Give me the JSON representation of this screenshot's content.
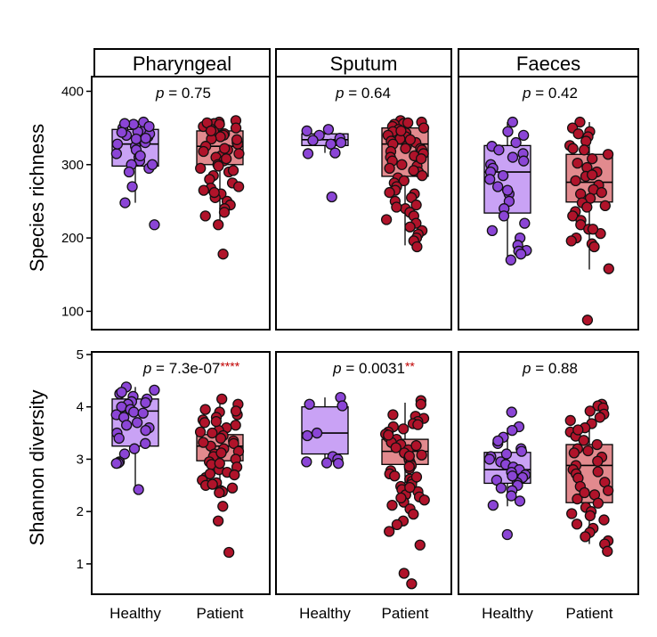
{
  "colors": {
    "healthy_fill": "#c9a2f5",
    "healthy_point": "#8b45d6",
    "patient_fill": "#e28a8e",
    "patient_point": "#b0132a",
    "significance": "#c00000"
  },
  "chart_data": {
    "type": "boxplot",
    "panels": [
      "Pharyngeal",
      "Sputum",
      "Faeces"
    ],
    "groups": [
      "Healthy",
      "Patient"
    ],
    "rows": [
      {
        "metric": "Species richness",
        "ylabel": "Species richness",
        "ylim": [
          75,
          420
        ],
        "yticks": [
          100,
          200,
          300,
          400
        ],
        "pvalues": [
          {
            "text": "= 0.75",
            "sig": ""
          },
          {
            "text": "= 0.64",
            "sig": ""
          },
          {
            "text": "= 0.42",
            "sig": ""
          }
        ],
        "boxes": [
          [
            {
              "q1": 298,
              "median": 328,
              "q3": 348,
              "wlo": 248,
              "whi": 358
            },
            {
              "q1": 300,
              "median": 325,
              "q3": 346,
              "wlo": 215,
              "whi": 360
            }
          ],
          [
            {
              "q1": 326,
              "median": 334,
              "q3": 342,
              "wlo": 316,
              "whi": 350
            },
            {
              "q1": 284,
              "median": 328,
              "q3": 350,
              "wlo": 190,
              "whi": 360
            }
          ],
          [
            {
              "q1": 234,
              "median": 290,
              "q3": 326,
              "wlo": 170,
              "whi": 358
            },
            {
              "q1": 249,
              "median": 276,
              "q3": 314,
              "wlo": 157,
              "whi": 358
            }
          ]
        ]
      },
      {
        "metric": "Shannon diversity",
        "ylabel": "Shannon diversity",
        "ylim": [
          0.42,
          5.05
        ],
        "yticks": [
          1,
          2,
          3,
          4,
          5
        ],
        "pvalues": [
          {
            "text": "= 7.3e-07",
            "sig": "****"
          },
          {
            "text": "= 0.0031",
            "sig": "**"
          },
          {
            "text": "= 0.88",
            "sig": ""
          }
        ],
        "boxes": [
          [
            {
              "q1": 3.25,
              "median": 3.92,
              "q3": 4.15,
              "wlo": 2.42,
              "whi": 4.38
            },
            {
              "q1": 2.97,
              "median": 3.25,
              "q3": 3.47,
              "wlo": 2.38,
              "whi": 4.12
            }
          ],
          [
            {
              "q1": 3.1,
              "median": 3.5,
              "q3": 4.0,
              "wlo": 2.92,
              "whi": 4.18
            },
            {
              "q1": 2.9,
              "median": 3.15,
              "q3": 3.38,
              "wlo": 2.2,
              "whi": 4.08
            }
          ],
          [
            {
              "q1": 2.54,
              "median": 2.8,
              "q3": 3.13,
              "wlo": 2.1,
              "whi": 3.6
            },
            {
              "q1": 2.17,
              "median": 2.88,
              "q3": 3.28,
              "wlo": 1.38,
              "whi": 4.02
            }
          ]
        ]
      }
    ],
    "points": {
      "richness": [
        [
          [
            350,
            348,
            345,
            355,
            340,
            338,
            330,
            325,
            320,
            335,
            315,
            310,
            305,
            300,
            295,
            290,
            270,
            248,
            218,
            358,
            342,
            352,
            328,
            312,
            300,
            356,
            336,
            344
          ],
          [
            360,
            358,
            356,
            355,
            352,
            350,
            348,
            345,
            342,
            340,
            338,
            335,
            330,
            328,
            325,
            320,
            318,
            315,
            312,
            310,
            305,
            300,
            298,
            295,
            290,
            285,
            280,
            275,
            270,
            268,
            265,
            260,
            255,
            250,
            245,
            240,
            235,
            230,
            218,
            178,
            357,
            346,
            334,
            322,
            308,
            292,
            262
          ]
        ],
        [
          [
            348,
            346,
            340,
            336,
            333,
            330,
            328,
            316,
            315,
            256
          ],
          [
            360,
            358,
            356,
            355,
            352,
            350,
            348,
            345,
            343,
            340,
            338,
            335,
            332,
            330,
            328,
            325,
            322,
            320,
            318,
            315,
            312,
            310,
            305,
            300,
            298,
            295,
            290,
            285,
            282,
            278,
            275,
            270,
            265,
            260,
            255,
            250,
            245,
            240,
            235,
            230,
            225,
            220,
            215,
            210,
            205,
            200,
            196,
            188,
            357,
            346,
            334,
            322,
            308,
            292,
            262,
            242
          ]
        ],
        [
          [
            358,
            345,
            340,
            330,
            325,
            320,
            315,
            310,
            305,
            300,
            295,
            290,
            280,
            270,
            260,
            250,
            240,
            230,
            220,
            210,
            200,
            190,
            183,
            182,
            178,
            170,
            285,
            265
          ],
          [
            358,
            350,
            345,
            342,
            338,
            332,
            326,
            320,
            314,
            308,
            302,
            296,
            290,
            284,
            278,
            272,
            266,
            260,
            254,
            248,
            242,
            236,
            230,
            224,
            218,
            212,
            206,
            200,
            196,
            192,
            188,
            158,
            88,
            322,
            286,
            262,
            244,
            212
          ]
        ]
      ],
      "shannon": [
        [
          [
            4.38,
            4.32,
            4.25,
            4.2,
            4.15,
            4.1,
            4.05,
            4.0,
            3.95,
            3.9,
            3.85,
            3.8,
            3.7,
            3.6,
            3.55,
            3.5,
            3.4,
            3.3,
            3.2,
            3.1,
            2.95,
            2.93,
            2.92,
            2.42,
            4.28,
            4.08,
            3.88,
            3.65
          ],
          [
            4.15,
            4.05,
            3.95,
            3.9,
            3.85,
            3.8,
            3.75,
            3.7,
            3.65,
            3.6,
            3.55,
            3.5,
            3.45,
            3.4,
            3.35,
            3.3,
            3.25,
            3.2,
            3.15,
            3.1,
            3.05,
            3.0,
            2.95,
            2.9,
            2.85,
            2.8,
            2.75,
            2.7,
            2.65,
            2.6,
            2.55,
            2.5,
            2.45,
            2.4,
            2.38,
            2.1,
            1.82,
            1.22,
            3.92,
            3.72,
            3.52,
            3.32,
            3.12,
            2.92,
            2.72,
            2.52,
            2.36
          ]
        ],
        [
          [
            4.18,
            4.05,
            4.02,
            3.5,
            3.45,
            3.05,
            3.0,
            2.95,
            2.93,
            2.92
          ],
          [
            4.12,
            4.05,
            3.85,
            3.82,
            3.78,
            3.72,
            3.68,
            3.62,
            3.58,
            3.52,
            3.48,
            3.42,
            3.38,
            3.32,
            3.28,
            3.22,
            3.18,
            3.12,
            3.08,
            3.02,
            2.98,
            2.92,
            2.88,
            2.82,
            2.78,
            2.72,
            2.68,
            2.62,
            2.58,
            2.52,
            2.48,
            2.42,
            2.38,
            2.32,
            2.28,
            2.22,
            2.18,
            2.12,
            2.05,
            1.95,
            1.82,
            1.75,
            1.62,
            1.36,
            0.82,
            0.62,
            3.66,
            3.46,
            3.26,
            3.06,
            2.86,
            2.66,
            2.46,
            2.26
          ]
        ],
        [
          [
            3.9,
            3.62,
            3.55,
            3.42,
            3.3,
            3.2,
            3.15,
            3.1,
            3.05,
            3.0,
            2.95,
            2.9,
            2.85,
            2.8,
            2.75,
            2.7,
            2.65,
            2.6,
            2.55,
            2.5,
            2.45,
            2.4,
            2.3,
            2.2,
            2.12,
            1.56,
            3.35,
            2.68
          ],
          [
            4.05,
            4.02,
            3.98,
            3.92,
            3.86,
            3.8,
            3.74,
            3.68,
            3.6,
            3.52,
            3.44,
            3.36,
            3.28,
            3.2,
            3.12,
            3.04,
            2.96,
            2.88,
            2.8,
            2.72,
            2.64,
            2.56,
            2.48,
            2.4,
            2.32,
            2.24,
            2.16,
            2.08,
            2.0,
            1.92,
            1.84,
            1.76,
            1.68,
            1.6,
            1.52,
            1.44,
            1.38,
            1.24,
            3.56,
            3.16,
            2.76,
            2.36,
            1.96
          ]
        ]
      ]
    }
  }
}
